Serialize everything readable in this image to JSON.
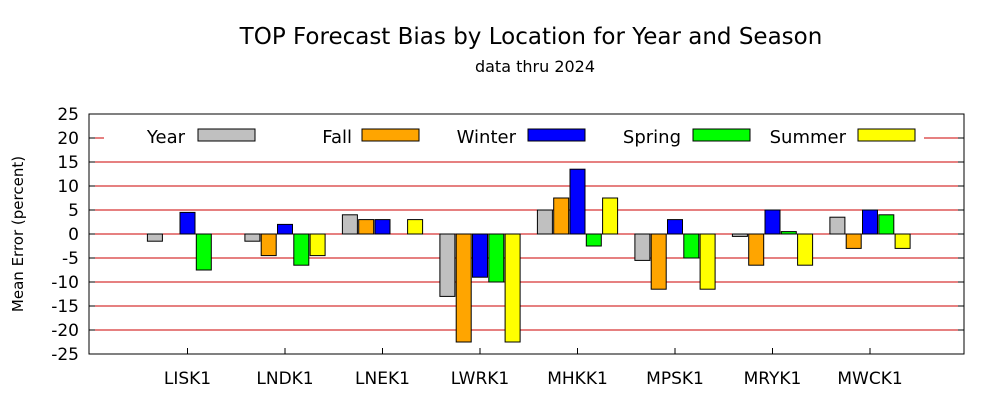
{
  "chart_data": {
    "type": "bar",
    "title": "TOP Forecast Bias by Location for Year and Season",
    "subtitle": "data thru 2024",
    "xlabel": "",
    "ylabel": "Mean Error (percent)",
    "ylim": [
      -25,
      25
    ],
    "yticks": [
      25,
      20,
      15,
      10,
      5,
      0,
      -5,
      -10,
      -15,
      -20,
      -25
    ],
    "grid": true,
    "legend_position": "top",
    "categories": [
      "LISK1",
      "LNDK1",
      "LNEK1",
      "LWRK1",
      "MHKK1",
      "MPSK1",
      "MRYK1",
      "MWCK1"
    ],
    "series": [
      {
        "name": "Year",
        "color": "#c0c0c0",
        "values": [
          -1.5,
          -1.5,
          4,
          -13,
          5,
          -5.5,
          -0.5,
          3.5
        ]
      },
      {
        "name": "Fall",
        "color": "#ffa500",
        "values": [
          0,
          -4.5,
          3,
          -22.5,
          7.5,
          -11.5,
          -6.5,
          -3
        ]
      },
      {
        "name": "Winter",
        "color": "#0000ff",
        "values": [
          4.5,
          2,
          3,
          -9,
          13.5,
          3,
          5,
          5
        ]
      },
      {
        "name": "Spring",
        "color": "#00ff00",
        "values": [
          -7.5,
          -6.5,
          0,
          -10,
          -2.5,
          -5,
          0.5,
          4
        ]
      },
      {
        "name": "Summer",
        "color": "#ffff00",
        "values": [
          0,
          -4.5,
          3,
          -22.5,
          7.5,
          -11.5,
          -6.5,
          -3
        ]
      }
    ]
  }
}
